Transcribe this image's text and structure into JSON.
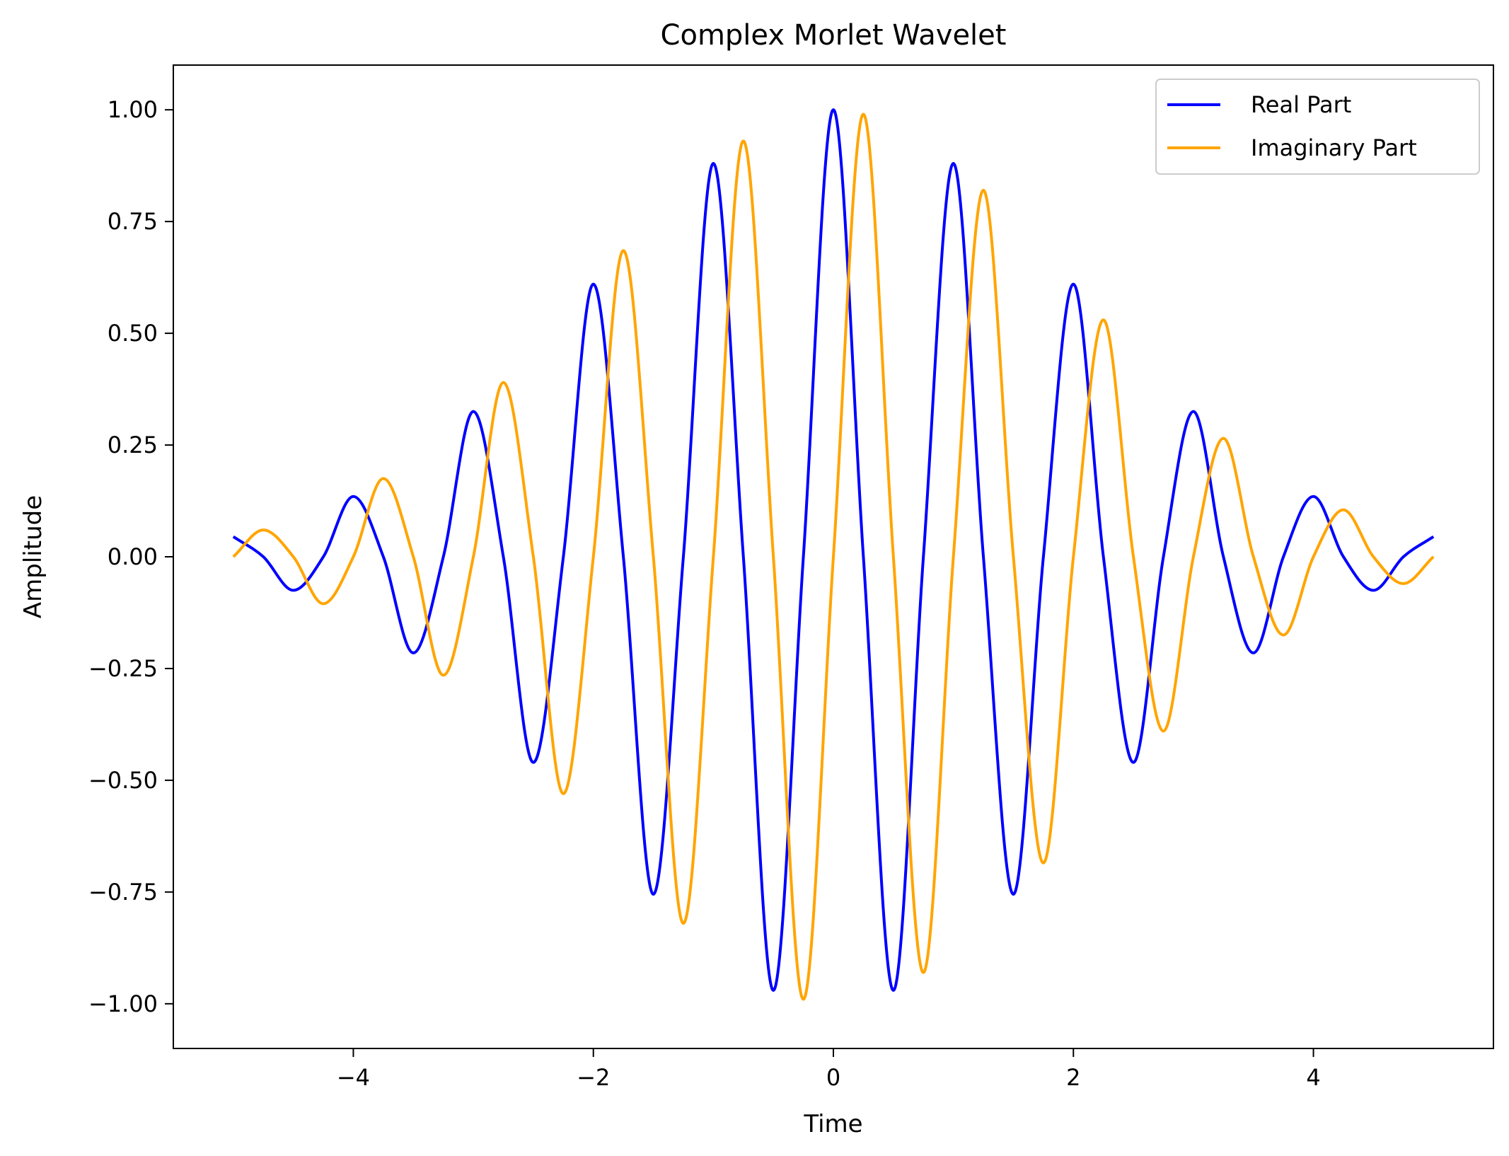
{
  "chart_data": {
    "type": "line",
    "title": "Complex Morlet Wavelet",
    "xlabel": "Time",
    "ylabel": "Amplitude",
    "xlim": [
      -5.5,
      5.5
    ],
    "ylim": [
      -1.1,
      1.1
    ],
    "xticks": [
      -4,
      -2,
      0,
      2,
      4
    ],
    "xtick_labels": [
      "−4",
      "−2",
      "0",
      "2",
      "4"
    ],
    "yticks": [
      -1.0,
      -0.75,
      -0.5,
      -0.25,
      0.0,
      0.25,
      0.5,
      0.75,
      1.0
    ],
    "ytick_labels": [
      "−1.00",
      "−0.75",
      "−0.50",
      "−0.25",
      "0.00",
      "0.25",
      "0.50",
      "0.75",
      "1.00"
    ],
    "grid": false,
    "legend_position": "top-right",
    "series": [
      {
        "name": "Real Part",
        "color": "#0000ff",
        "x": [
          -5.0,
          -4.75,
          -4.5,
          -4.25,
          -4.0,
          -3.75,
          -3.5,
          -3.25,
          -3.0,
          -2.75,
          -2.5,
          -2.25,
          -2.0,
          -1.75,
          -1.5,
          -1.25,
          -1.0,
          -0.75,
          -0.5,
          -0.25,
          0.0,
          0.25,
          0.5,
          0.75,
          1.0,
          1.25,
          1.5,
          1.75,
          2.0,
          2.25,
          2.5,
          2.75,
          3.0,
          3.25,
          3.5,
          3.75,
          4.0,
          4.25,
          4.5,
          4.75,
          5.0
        ],
        "y": [
          0.045,
          0.0,
          -0.075,
          0.0,
          0.135,
          0.0,
          -0.215,
          0.0,
          0.325,
          0.0,
          -0.46,
          0.0,
          0.61,
          0.0,
          -0.755,
          0.0,
          0.88,
          0.0,
          -0.97,
          0.0,
          1.0,
          0.0,
          -0.97,
          0.0,
          0.88,
          0.0,
          -0.755,
          0.0,
          0.61,
          0.0,
          -0.46,
          0.0,
          0.325,
          0.0,
          -0.215,
          0.0,
          0.135,
          0.0,
          -0.075,
          0.0,
          0.045
        ]
      },
      {
        "name": "Imaginary Part",
        "color": "#ffa500",
        "x": [
          -5.0,
          -4.75,
          -4.5,
          -4.25,
          -4.0,
          -3.75,
          -3.5,
          -3.25,
          -3.0,
          -2.75,
          -2.5,
          -2.25,
          -2.0,
          -1.75,
          -1.5,
          -1.25,
          -1.0,
          -0.75,
          -0.5,
          -0.25,
          0.0,
          0.25,
          0.5,
          0.75,
          1.0,
          1.25,
          1.5,
          1.75,
          2.0,
          2.25,
          2.5,
          2.75,
          3.0,
          3.25,
          3.5,
          3.75,
          4.0,
          4.25,
          4.5,
          4.75,
          5.0
        ],
        "y": [
          0.0,
          0.06,
          0.0,
          -0.105,
          0.0,
          0.175,
          0.0,
          -0.265,
          0.0,
          0.39,
          0.0,
          -0.53,
          0.0,
          0.685,
          0.0,
          -0.82,
          0.0,
          0.93,
          0.0,
          -0.99,
          0.0,
          0.99,
          0.0,
          -0.93,
          0.0,
          0.82,
          0.0,
          -0.685,
          0.0,
          0.53,
          0.0,
          -0.39,
          0.0,
          0.265,
          0.0,
          -0.175,
          0.0,
          0.105,
          0.0,
          -0.06,
          0.0
        ]
      }
    ]
  }
}
